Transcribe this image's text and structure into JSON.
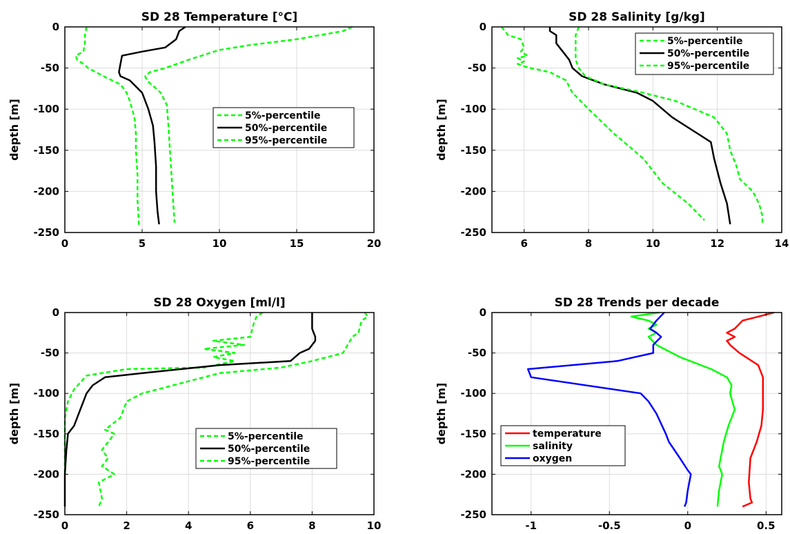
{
  "chart_data": [
    {
      "type": "line",
      "title": "SD 28 Temperature [°C]",
      "xlabel": "",
      "ylabel": "depth [m]",
      "xlim": [
        0,
        20
      ],
      "ylim": [
        -250,
        0
      ],
      "xticks": [
        0,
        5,
        10,
        15,
        20
      ],
      "xtick_labels": [
        "0",
        "5",
        "10",
        "15",
        "20"
      ],
      "yticks": [
        0,
        -50,
        -100,
        -150,
        -200,
        -250
      ],
      "ytick_labels": [
        "0",
        "-50",
        "-100",
        "-150",
        "-200",
        "-250"
      ],
      "grid": true,
      "legend_position": "center-right",
      "series": [
        {
          "name": "5%-percentile",
          "color": "#00ff00",
          "dash": true,
          "x": [
            1.4,
            1.3,
            1.3,
            1.2,
            0.7,
            0.8,
            1.2,
            1.5,
            2.5,
            3.6,
            4.0,
            4.2,
            4.5,
            4.6,
            4.6,
            4.7,
            4.7,
            4.8
          ],
          "y": [
            0,
            -10,
            -20,
            -30,
            -35,
            -40,
            -45,
            -50,
            -60,
            -70,
            -80,
            -90,
            -110,
            -130,
            -150,
            -180,
            -210,
            -243
          ]
        },
        {
          "name": "50%-percentile",
          "color": "#000000",
          "dash": false,
          "x": [
            7.8,
            7.4,
            7.2,
            6.5,
            5.0,
            3.7,
            3.6,
            3.5,
            3.6,
            4.2,
            5.0,
            5.4,
            5.7,
            5.8,
            5.9,
            5.9,
            6.0,
            6.1
          ],
          "y": [
            0,
            -5,
            -15,
            -25,
            -30,
            -35,
            -45,
            -55,
            -60,
            -65,
            -80,
            -100,
            -120,
            -140,
            -170,
            -200,
            -225,
            -240
          ]
        },
        {
          "name": "95%-percentile",
          "color": "#00ff00",
          "dash": true,
          "x": [
            18.6,
            18.0,
            15.0,
            12.0,
            10.0,
            8.0,
            6.5,
            5.5,
            5.2,
            5.3,
            6.2,
            6.6,
            6.7,
            6.8,
            6.9,
            7.0,
            7.1
          ],
          "y": [
            0,
            -5,
            -15,
            -22,
            -28,
            -40,
            -50,
            -55,
            -60,
            -65,
            -80,
            -95,
            -120,
            -150,
            -180,
            -210,
            -238
          ]
        }
      ]
    },
    {
      "type": "line",
      "title": "SD 28 Salinity [g/kg]",
      "xlabel": "",
      "ylabel": "depth [m]",
      "xlim": [
        5,
        14
      ],
      "ylim": [
        -250,
        0
      ],
      "xticks": [
        6,
        8,
        10,
        12,
        14
      ],
      "xtick_labels": [
        "6",
        "8",
        "10",
        "12",
        "14"
      ],
      "yticks": [
        0,
        -50,
        -100,
        -150,
        -200,
        -250
      ],
      "ytick_labels": [
        "0",
        "-50",
        "-100",
        "-150",
        "-200",
        "-250"
      ],
      "grid": true,
      "legend_position": "top-right",
      "series": [
        {
          "name": "5%-percentile",
          "color": "#00ff00",
          "dash": true,
          "x": [
            5.3,
            5.5,
            5.9,
            6.0,
            5.9,
            6.1,
            5.8,
            6.0,
            5.8,
            6.0,
            6.2,
            6.8,
            7.3,
            7.5,
            8.0,
            8.8,
            9.7,
            10.3,
            11.1,
            11.6
          ],
          "y": [
            0,
            -10,
            -15,
            -25,
            -30,
            -35,
            -38,
            -42,
            -45,
            -48,
            -50,
            -55,
            -65,
            -80,
            -100,
            -130,
            -160,
            -190,
            -215,
            -235
          ]
        },
        {
          "name": "50%-percentile",
          "color": "#000000",
          "dash": false,
          "x": [
            6.8,
            6.8,
            7.0,
            7.0,
            7.2,
            7.4,
            7.5,
            7.8,
            8.5,
            9.5,
            10.0,
            10.6,
            11.4,
            11.8,
            11.9,
            12.1,
            12.3,
            12.4
          ],
          "y": [
            0,
            -5,
            -10,
            -20,
            -30,
            -40,
            -50,
            -60,
            -70,
            -80,
            -90,
            -110,
            -130,
            -140,
            -160,
            -190,
            -215,
            -240
          ]
        },
        {
          "name": "95%-percentile",
          "color": "#00ff00",
          "dash": true,
          "x": [
            7.7,
            7.6,
            7.6,
            7.6,
            7.7,
            7.9,
            8.5,
            9.7,
            10.7,
            11.9,
            12.3,
            12.4,
            12.6,
            12.7,
            13.1,
            13.3,
            13.4,
            13.4
          ],
          "y": [
            0,
            -10,
            -20,
            -40,
            -50,
            -60,
            -70,
            -80,
            -90,
            -110,
            -130,
            -150,
            -170,
            -185,
            -200,
            -215,
            -230,
            -240
          ]
        }
      ]
    },
    {
      "type": "line",
      "title": "SD 28 Oxygen [ml/l]",
      "xlabel": "",
      "ylabel": "depth [m]",
      "xlim": [
        0,
        10
      ],
      "ylim": [
        -250,
        0
      ],
      "xticks": [
        0,
        2,
        4,
        6,
        8,
        10
      ],
      "xtick_labels": [
        "0",
        "2",
        "4",
        "6",
        "8",
        "10"
      ],
      "yticks": [
        0,
        -50,
        -100,
        -150,
        -200,
        -250
      ],
      "ytick_labels": [
        "0",
        "-50",
        "-100",
        "-150",
        "-200",
        "-250"
      ],
      "grid": true,
      "legend_position": "bottom-right",
      "series": [
        {
          "name": "5%-percentile",
          "color": "#00ff00",
          "dash": true,
          "x": [
            6.4,
            6.2,
            6.1,
            6.0,
            4.8,
            5.8,
            4.5,
            5.5,
            4.8,
            5.5,
            4.5,
            2.0,
            0.7,
            0.3,
            0.1,
            0.0,
            0.0,
            0.0,
            0.0,
            0.0
          ],
          "y": [
            0,
            -5,
            -15,
            -30,
            -35,
            -40,
            -45,
            -50,
            -55,
            -60,
            -68,
            -70,
            -78,
            -95,
            -110,
            -130,
            -150,
            -170,
            -190,
            -200
          ]
        },
        {
          "name": "50%-percentile",
          "color": "#000000",
          "dash": false,
          "x": [
            8.0,
            8.0,
            8.0,
            8.1,
            8.1,
            7.9,
            7.6,
            7.3,
            5.0,
            2.5,
            1.3,
            0.9,
            0.7,
            0.5,
            0.3,
            0.1,
            0.05,
            0.0,
            0.0
          ],
          "y": [
            0,
            -10,
            -20,
            -30,
            -35,
            -45,
            -50,
            -60,
            -65,
            -75,
            -80,
            -90,
            -100,
            -120,
            -140,
            -150,
            -170,
            -200,
            -240
          ]
        },
        {
          "name": "95%-percentile",
          "color": "#00ff00",
          "dash": true,
          "x": [
            9.7,
            9.8,
            9.6,
            9.5,
            9.3,
            9.0,
            8.0,
            7.0,
            5.0,
            3.5,
            2.5,
            2.0,
            1.8,
            1.3,
            1.6,
            1.2,
            1.4,
            1.2,
            1.6,
            1.1,
            1.2,
            1.1
          ],
          "y": [
            0,
            -5,
            -10,
            -25,
            -30,
            -50,
            -60,
            -68,
            -75,
            -90,
            -100,
            -110,
            -130,
            -145,
            -150,
            -170,
            -180,
            -190,
            -200,
            -210,
            -230,
            -240
          ]
        }
      ]
    },
    {
      "type": "line",
      "title": "SD 28 Trends per decade",
      "xlabel": "",
      "ylabel": "depth [m]",
      "xlim": [
        -1.25,
        0.6
      ],
      "ylim": [
        -250,
        0
      ],
      "xticks": [
        -1,
        -0.5,
        0,
        0.5
      ],
      "xtick_labels": [
        "-1",
        "-0.5",
        "0",
        "0.5"
      ],
      "yticks": [
        0,
        -50,
        -100,
        -150,
        -200,
        -250
      ],
      "ytick_labels": [
        "0",
        "-50",
        "-100",
        "-150",
        "-200",
        "-250"
      ],
      "grid": true,
      "legend_position": "bottom-left",
      "series": [
        {
          "name": "temperature",
          "color": "#ff0000",
          "dash": false,
          "x": [
            0.55,
            0.45,
            0.35,
            0.3,
            0.25,
            0.3,
            0.25,
            0.27,
            0.33,
            0.45,
            0.48,
            0.48,
            0.48,
            0.47,
            0.44,
            0.4,
            0.39,
            0.4,
            0.41,
            0.35
          ],
          "y": [
            0,
            -5,
            -10,
            -20,
            -25,
            -30,
            -35,
            -40,
            -50,
            -65,
            -80,
            -100,
            -120,
            -140,
            -160,
            -180,
            -210,
            -230,
            -235,
            -240
          ]
        },
        {
          "name": "salinity",
          "color": "#00ff00",
          "dash": false,
          "x": [
            -0.18,
            -0.36,
            -0.25,
            -0.2,
            -0.25,
            -0.2,
            -0.25,
            -0.2,
            -0.05,
            0.15,
            0.25,
            0.28,
            0.27,
            0.3,
            0.26,
            0.23,
            0.21,
            0.2,
            0.22,
            0.2,
            0.19
          ],
          "y": [
            0,
            -5,
            -10,
            -15,
            -20,
            -25,
            -30,
            -40,
            -55,
            -70,
            -80,
            -90,
            -100,
            -120,
            -140,
            -160,
            -180,
            -190,
            -200,
            -220,
            -240
          ]
        },
        {
          "name": "oxygen",
          "color": "#0000ff",
          "dash": false,
          "x": [
            -0.15,
            -0.2,
            -0.24,
            -0.2,
            -0.17,
            -0.22,
            -0.22,
            -0.45,
            -1.02,
            -1.0,
            -0.3,
            -0.25,
            -0.2,
            -0.14,
            -0.12,
            -0.05,
            0.0,
            0.02,
            0.0,
            -0.01,
            -0.02
          ],
          "y": [
            0,
            -10,
            -20,
            -25,
            -30,
            -40,
            -50,
            -60,
            -70,
            -80,
            -100,
            -110,
            -125,
            -150,
            -160,
            -180,
            -195,
            -200,
            -220,
            -235,
            -240
          ]
        }
      ]
    }
  ]
}
